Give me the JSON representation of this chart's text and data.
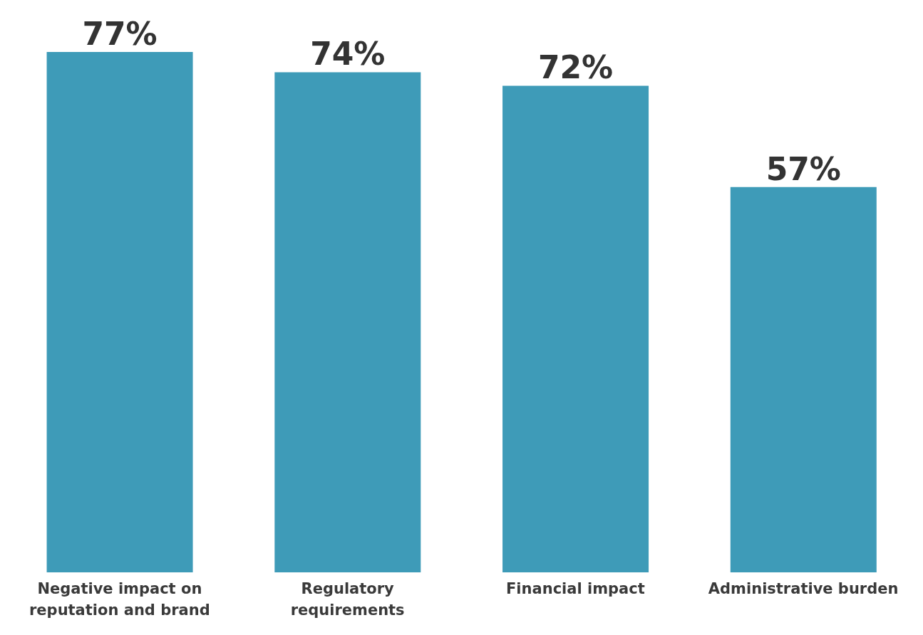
{
  "chart_data": {
    "type": "bar",
    "categories": [
      "Negative impact on reputation and brand",
      "Regulatory requirements",
      "Financial impact",
      "Administrative burden"
    ],
    "values": [
      77,
      74,
      72,
      57
    ],
    "value_labels": [
      "77%",
      "74%",
      "72%",
      "57%"
    ],
    "color": "#3e9bb8",
    "grid": false,
    "legend": false
  }
}
